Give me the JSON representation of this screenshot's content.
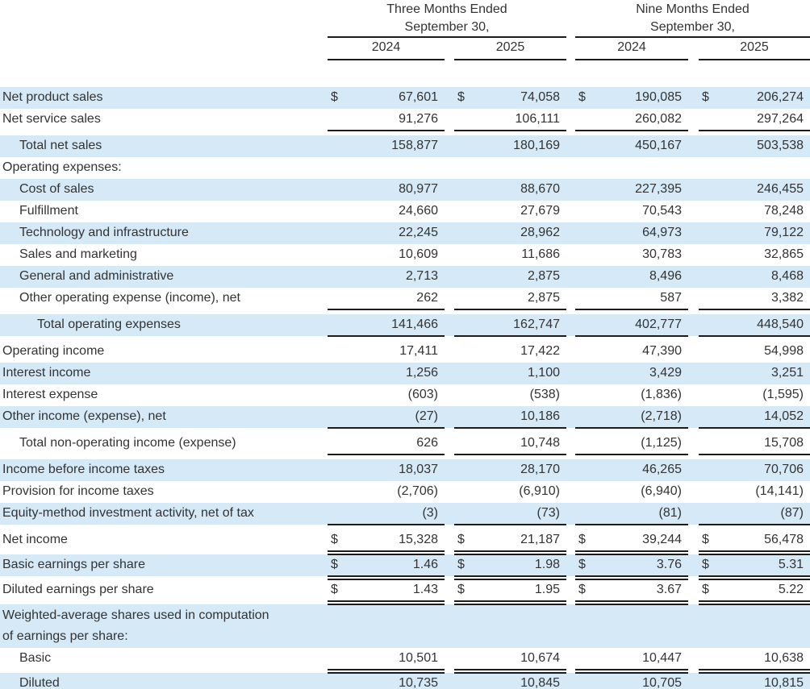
{
  "document": "Consolidated Statements of Operations table",
  "currency_symbol": "$",
  "colors": {
    "row_shade_blue": "#d5e9f7",
    "text": "#333333",
    "rule_line": "#1c1c1c"
  },
  "header": {
    "groups": [
      {
        "line1": "Three Months Ended",
        "line2": "September 30,",
        "years": [
          "2024",
          "2025"
        ]
      },
      {
        "line1": "Nine Months Ended",
        "line2": "September 30,",
        "years": [
          "2024",
          "2025"
        ]
      }
    ]
  },
  "rows": [
    {
      "label": "Net product sales",
      "indent": 0,
      "dollar": true,
      "values": [
        "67,601",
        "74,058",
        "190,085",
        "206,274"
      ],
      "bg": "blue",
      "rule": ""
    },
    {
      "label": "Net service sales",
      "indent": 0,
      "dollar": false,
      "values": [
        "91,276",
        "106,111",
        "260,082",
        "297,264"
      ],
      "bg": "white",
      "rule": "single"
    },
    {
      "label": "Total net sales",
      "indent": 1,
      "dollar": false,
      "values": [
        "158,877",
        "180,169",
        "450,167",
        "503,538"
      ],
      "bg": "blue",
      "rule": ""
    },
    {
      "label": "Operating expenses:",
      "indent": 0,
      "dollar": false,
      "values": [
        "",
        "",
        "",
        ""
      ],
      "bg": "white",
      "rule": ""
    },
    {
      "label": "Cost of sales",
      "indent": 1,
      "dollar": false,
      "values": [
        "80,977",
        "88,670",
        "227,395",
        "246,455"
      ],
      "bg": "blue",
      "rule": ""
    },
    {
      "label": "Fulfillment",
      "indent": 1,
      "dollar": false,
      "values": [
        "24,660",
        "27,679",
        "70,543",
        "78,248"
      ],
      "bg": "white",
      "rule": ""
    },
    {
      "label": "Technology and infrastructure",
      "indent": 1,
      "dollar": false,
      "values": [
        "22,245",
        "28,962",
        "64,973",
        "79,122"
      ],
      "bg": "blue",
      "rule": ""
    },
    {
      "label": "Sales and marketing",
      "indent": 1,
      "dollar": false,
      "values": [
        "10,609",
        "11,686",
        "30,783",
        "32,865"
      ],
      "bg": "white",
      "rule": ""
    },
    {
      "label": "General and administrative",
      "indent": 1,
      "dollar": false,
      "values": [
        "2,713",
        "2,875",
        "8,496",
        "8,468"
      ],
      "bg": "blue",
      "rule": ""
    },
    {
      "label": "Other operating expense (income), net",
      "indent": 1,
      "dollar": false,
      "values": [
        "262",
        "2,875",
        "587",
        "3,382"
      ],
      "bg": "white",
      "rule": "single"
    },
    {
      "label": "Total operating expenses",
      "indent": 2,
      "dollar": false,
      "values": [
        "141,466",
        "162,747",
        "402,777",
        "448,540"
      ],
      "bg": "blue",
      "rule": "single"
    },
    {
      "label": "Operating income",
      "indent": 0,
      "dollar": false,
      "values": [
        "17,411",
        "17,422",
        "47,390",
        "54,998"
      ],
      "bg": "white",
      "rule": ""
    },
    {
      "label": "Interest income",
      "indent": 0,
      "dollar": false,
      "values": [
        "1,256",
        "1,100",
        "3,429",
        "3,251"
      ],
      "bg": "blue",
      "rule": ""
    },
    {
      "label": "Interest expense",
      "indent": 0,
      "dollar": false,
      "values": [
        "(603)",
        "(538)",
        "(1,836)",
        "(1,595)"
      ],
      "bg": "white",
      "rule": ""
    },
    {
      "label": "Other income (expense), net",
      "indent": 0,
      "dollar": false,
      "values": [
        "(27)",
        "10,186",
        "(2,718)",
        "14,052"
      ],
      "bg": "blue",
      "rule": "single"
    },
    {
      "label": "Total non-operating income (expense)",
      "indent": 1,
      "dollar": false,
      "values": [
        "626",
        "10,748",
        "(1,125)",
        "15,708"
      ],
      "bg": "white",
      "rule": "single"
    },
    {
      "label": "Income before income taxes",
      "indent": 0,
      "dollar": false,
      "values": [
        "18,037",
        "28,170",
        "46,265",
        "70,706"
      ],
      "bg": "blue",
      "rule": ""
    },
    {
      "label": "Provision for income taxes",
      "indent": 0,
      "dollar": false,
      "values": [
        "(2,706)",
        "(6,910)",
        "(6,940)",
        "(14,141)"
      ],
      "bg": "white",
      "rule": ""
    },
    {
      "label": "Equity-method investment activity, net of tax",
      "indent": 0,
      "dollar": false,
      "values": [
        "(3)",
        "(73)",
        "(81)",
        "(87)"
      ],
      "bg": "blue",
      "rule": "single"
    },
    {
      "label": "Net income",
      "indent": 0,
      "dollar": true,
      "values": [
        "15,328",
        "21,187",
        "39,244",
        "56,478"
      ],
      "bg": "white",
      "rule": "double"
    },
    {
      "label": "Basic earnings per share",
      "indent": 0,
      "dollar": true,
      "values": [
        "1.46",
        "1.98",
        "3.76",
        "5.31"
      ],
      "bg": "blue",
      "rule": "double"
    },
    {
      "label": "Diluted earnings per share",
      "indent": 0,
      "dollar": true,
      "values": [
        "1.43",
        "1.95",
        "3.67",
        "5.22"
      ],
      "bg": "white",
      "rule": "double"
    },
    {
      "label": "Weighted-average shares used in computation of earnings per share:",
      "indent": 0,
      "dollar": false,
      "values": [
        "",
        "",
        "",
        ""
      ],
      "bg": "blue",
      "rule": "",
      "wrap": true
    },
    {
      "label": "Basic",
      "indent": 1,
      "dollar": false,
      "values": [
        "10,501",
        "10,674",
        "10,447",
        "10,638"
      ],
      "bg": "white",
      "rule": "double"
    },
    {
      "label": "Diluted",
      "indent": 1,
      "dollar": false,
      "values": [
        "10,735",
        "10,845",
        "10,705",
        "10,815"
      ],
      "bg": "blue",
      "rule": ""
    }
  ]
}
